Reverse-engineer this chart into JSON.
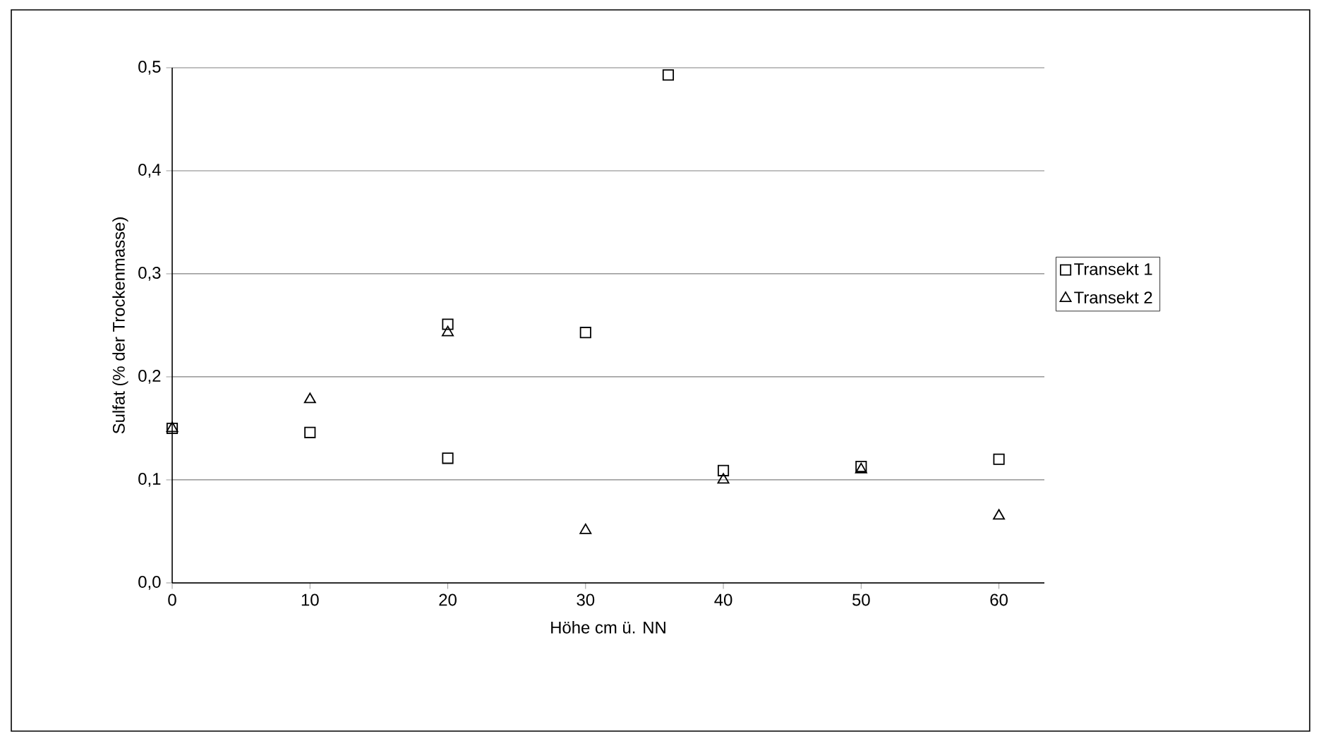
{
  "chart_data": {
    "type": "scatter",
    "xlabel": "Höhe cm ü. NN",
    "ylabel": "Sulfat (% der Trockenmasse)",
    "xlim": [
      0,
      63.3
    ],
    "xticks": [
      0,
      10,
      20,
      30,
      40,
      50,
      60
    ],
    "ylim": [
      0,
      0.5
    ],
    "yticks": [
      {
        "value": 0,
        "label": "0,0"
      },
      {
        "value": 0.1,
        "label": "0,1"
      },
      {
        "value": 0.2,
        "label": "0,2"
      },
      {
        "value": 0.3,
        "label": "0,3"
      },
      {
        "value": 0.4,
        "label": "0,4"
      },
      {
        "value": 0.5,
        "label": "0,5"
      }
    ],
    "grid": "y",
    "legend": "right",
    "series": [
      {
        "name": "Transekt 1",
        "color": "#000000",
        "marker": "square",
        "x": [
          0,
          10,
          20,
          20,
          30,
          36,
          40,
          50,
          60
        ],
        "values": [
          0.15,
          0.146,
          0.251,
          0.121,
          0.243,
          0.493,
          0.109,
          0.113,
          0.12
        ]
      },
      {
        "name": "Transekt 2",
        "color": "#000000",
        "marker": "triangle",
        "x": [
          0,
          10,
          20,
          30,
          40,
          50,
          60
        ],
        "values": [
          0.15,
          0.178,
          0.243,
          0.051,
          0.1,
          0.11,
          0.065
        ]
      }
    ]
  }
}
